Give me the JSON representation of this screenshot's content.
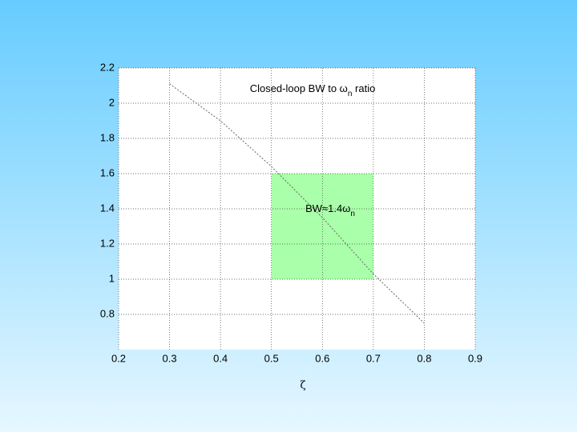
{
  "chart_data": {
    "type": "line",
    "title": {
      "text": "Closed-loop BW to ω",
      "sub": "n",
      "tail": " ratio"
    },
    "annotation": {
      "text": "BW≈1.4ω",
      "sub": "n"
    },
    "xlabel": "ζ",
    "x": [
      0.3,
      0.4,
      0.5,
      0.6,
      0.7,
      0.8
    ],
    "series": [
      {
        "color": "#666666",
        "values": [
          2.11,
          1.9,
          1.64,
          1.35,
          1.03,
          0.75
        ]
      }
    ],
    "shaded_region": {
      "x": [
        0.5,
        0.7
      ],
      "y": [
        1,
        1.6
      ],
      "color": "#aaffaa"
    },
    "xlim": [
      0.2,
      0.9
    ],
    "ylim": [
      0.6,
      2.2
    ],
    "xticks": [
      0.2,
      0.3,
      0.4,
      0.5,
      0.6,
      0.7,
      0.8,
      0.9
    ],
    "yticks": [
      0.8,
      1,
      1.2,
      1.4,
      1.6,
      1.8,
      2,
      2.2
    ],
    "grid": true
  }
}
